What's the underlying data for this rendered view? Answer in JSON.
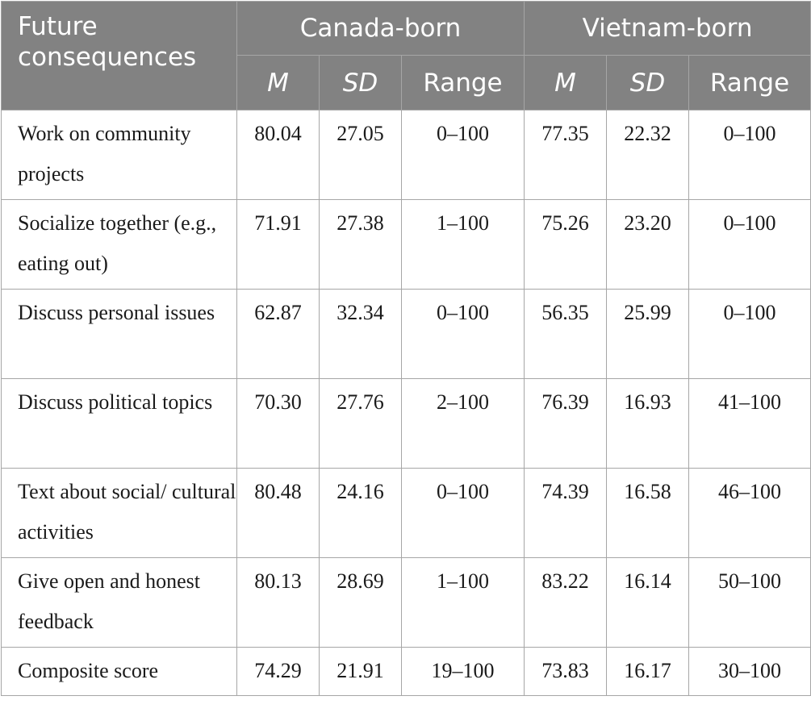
{
  "table": {
    "corner_header": "Future consequences",
    "groups": [
      "Canada-born",
      "Vietnam-born"
    ],
    "subheaders": [
      "M",
      "SD",
      "Range",
      "M",
      "SD",
      "Range"
    ],
    "rows": [
      {
        "label": "Work on community projects",
        "cells": [
          "80.04",
          "27.05",
          "0–100",
          "77.35",
          "22.32",
          "0–100"
        ]
      },
      {
        "label": "Socialize together (e.g., eating out)",
        "cells": [
          "71.91",
          "27.38",
          "1–100",
          "75.26",
          "23.20",
          "0–100"
        ]
      },
      {
        "label": "Discuss personal issues",
        "cells": [
          "62.87",
          "32.34",
          "0–100",
          "56.35",
          "25.99",
          "0–100"
        ]
      },
      {
        "label": "Discuss political topics",
        "cells": [
          "70.30",
          "27.76",
          "2–100",
          "76.39",
          "16.93",
          "41–100"
        ]
      },
      {
        "label": "Text about social/ cultural activities",
        "cells": [
          "80.48",
          "24.16",
          "0–100",
          "74.39",
          "16.58",
          "46–100"
        ]
      },
      {
        "label": "Give open and honest feedback",
        "cells": [
          "80.13",
          "28.69",
          "1–100",
          "83.22",
          "16.14",
          "50–100"
        ]
      },
      {
        "label": "Composite score",
        "cells": [
          "74.29",
          "21.91",
          "19–100",
          "73.83",
          "16.17",
          "30–100"
        ]
      }
    ]
  }
}
